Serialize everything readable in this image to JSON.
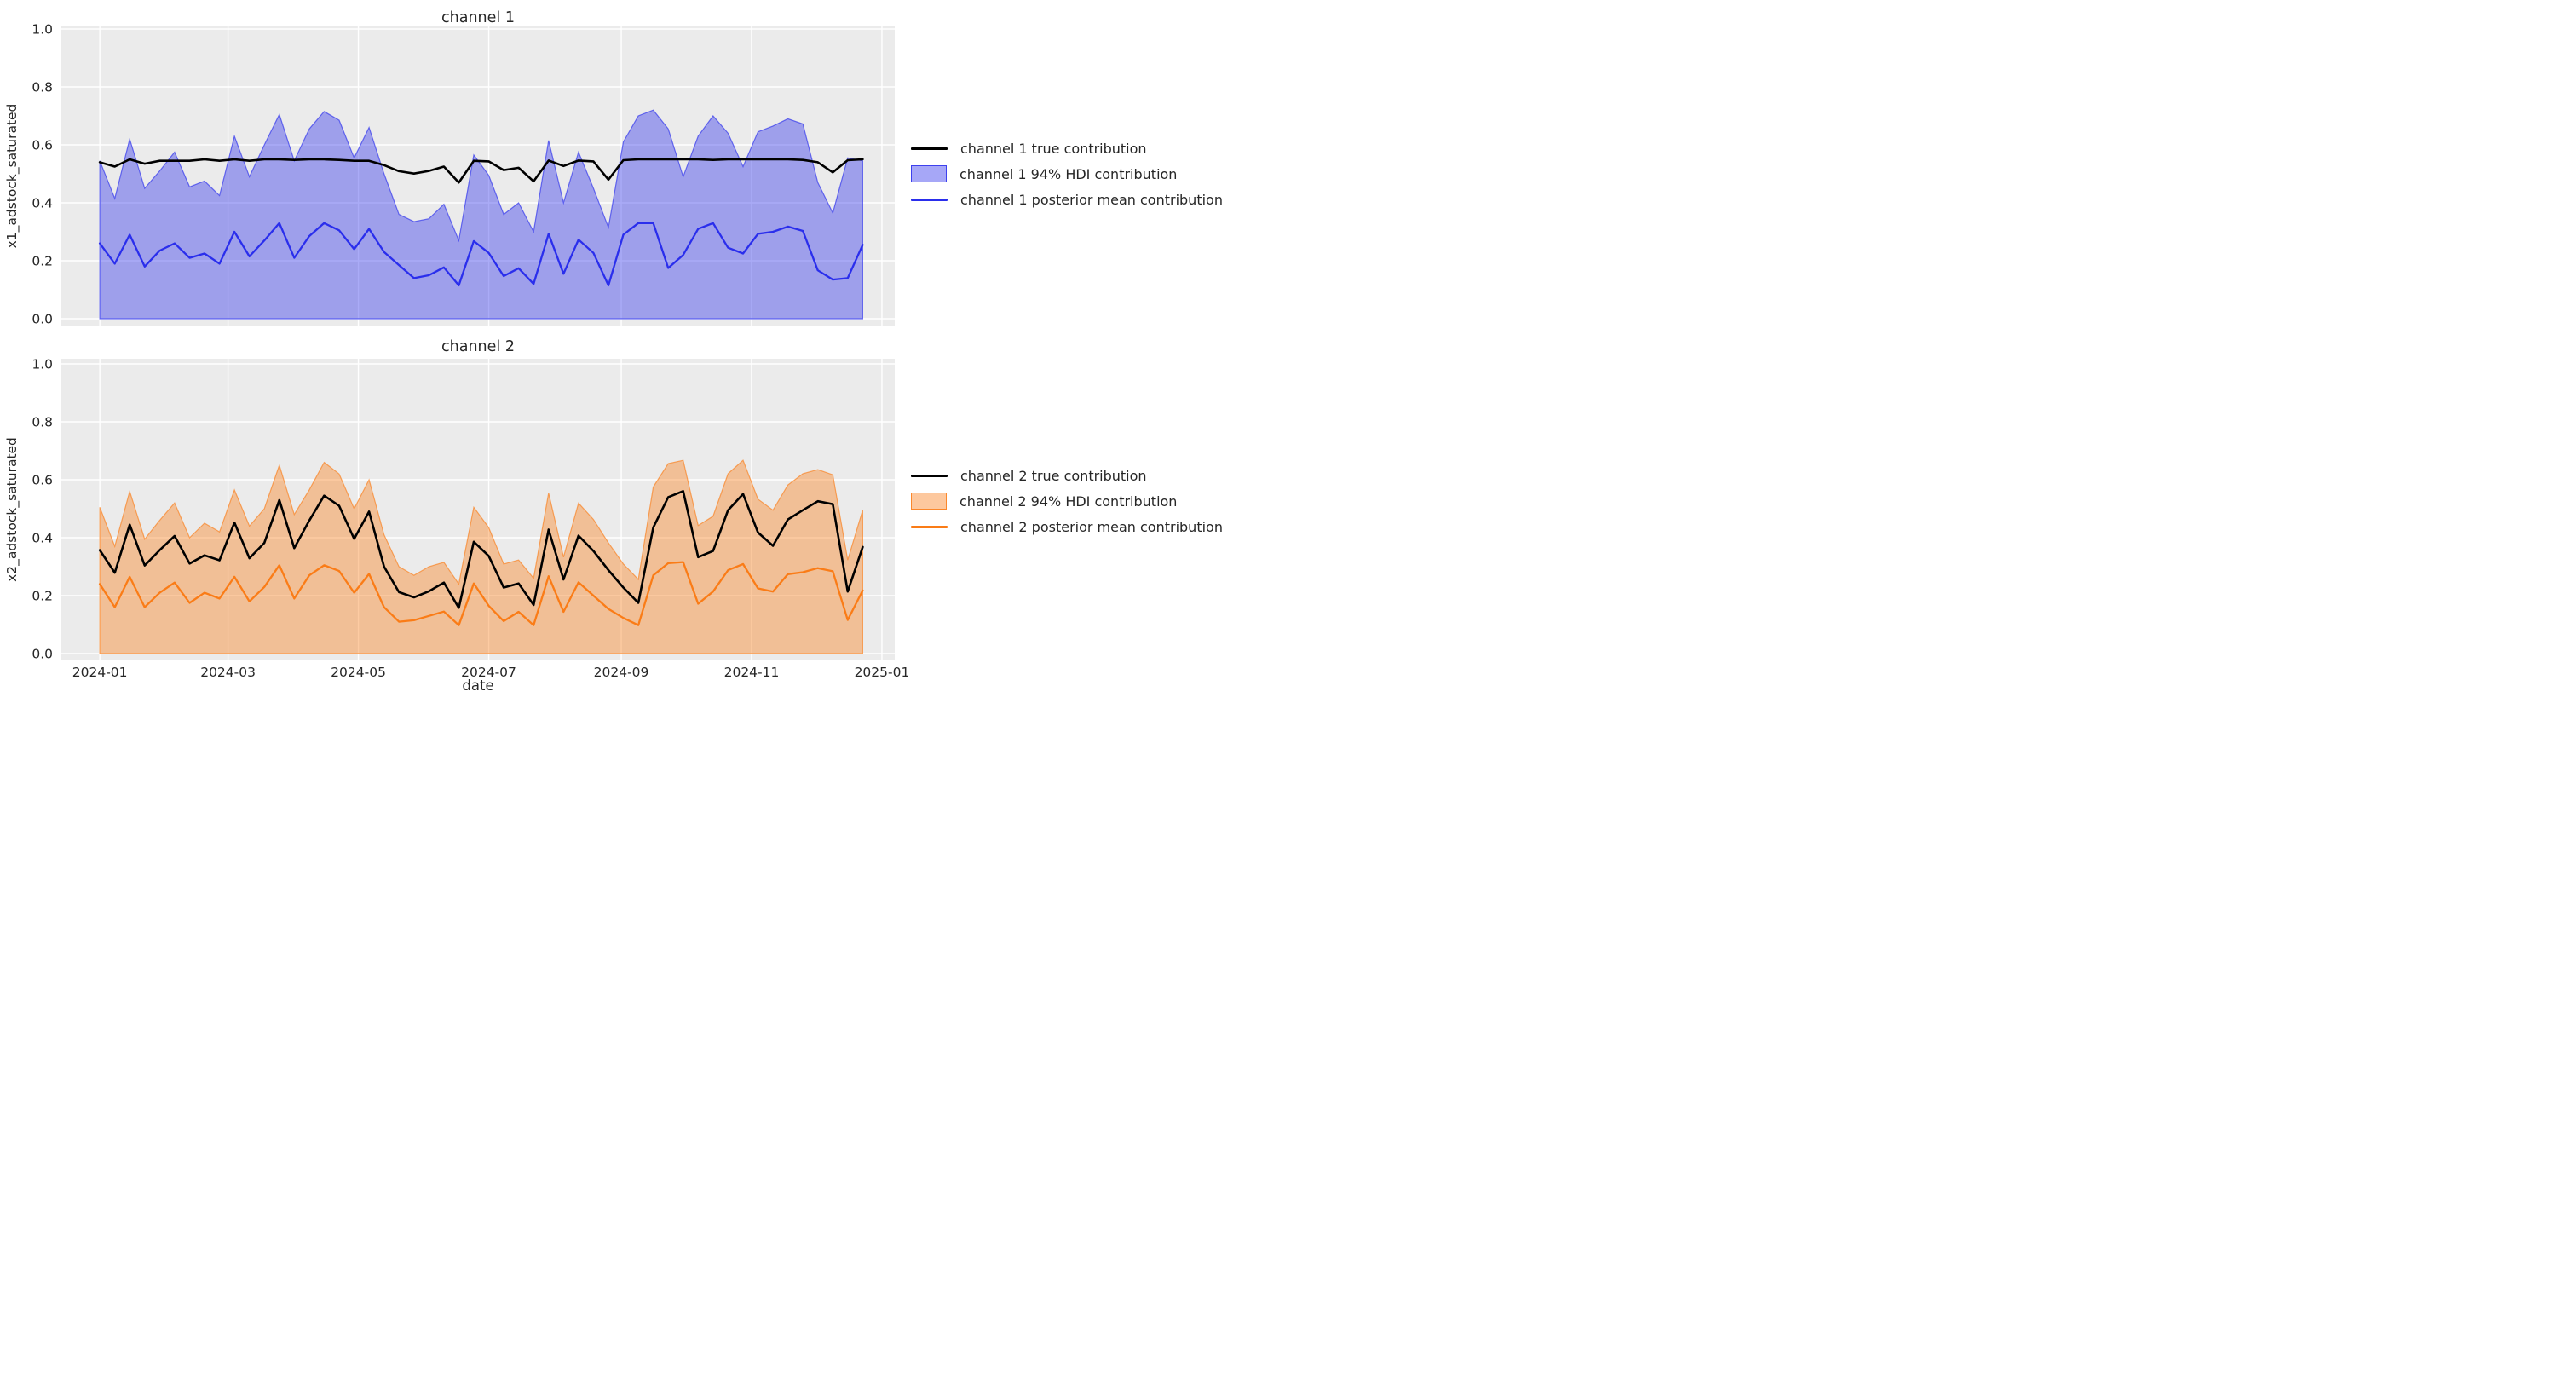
{
  "figure": {
    "background": "#ffffff",
    "axes_background": "#ebebeb",
    "grid_color": "#ffffff",
    "text_color": "#262626"
  },
  "chart_data": [
    {
      "id": "channel-1",
      "type": "line",
      "title": "channel 1",
      "ylabel": "x1_adstock_saturated",
      "xlabel": "",
      "ylim": [
        0.0,
        1.0
      ],
      "grid": "on",
      "legend_position": "right",
      "ytick_labels": [
        "0.0",
        "0.2",
        "0.4",
        "0.6",
        "0.8",
        "1.0"
      ],
      "ytick_values": [
        0.0,
        0.2,
        0.4,
        0.6,
        0.8,
        1.0
      ],
      "xtick_labels": [],
      "xtick_days": [
        0,
        60,
        121,
        182,
        244,
        305,
        366
      ],
      "x_start_day": -18,
      "x_end_day": 372,
      "point_interval_days": 7,
      "colors": {
        "true": "#000000",
        "hdi": "#2a2eec",
        "mean": "#2a2eec"
      },
      "legend": [
        {
          "label": "channel 1 true contribution",
          "swatch": "line",
          "color": "#000000"
        },
        {
          "label": "channel 1 94% HDI contribution",
          "swatch": "patch",
          "color": "#2a2eec"
        },
        {
          "label": "channel 1 posterior mean contribution",
          "swatch": "line",
          "color": "#2a2eec"
        }
      ],
      "series": [
        {
          "name": "channel 1 true contribution",
          "values": [
            0.54,
            0.525,
            0.55,
            0.535,
            0.545,
            0.545,
            0.545,
            0.55,
            0.545,
            0.55,
            0.545,
            0.55,
            0.55,
            0.548,
            0.55,
            0.55,
            0.548,
            0.545,
            0.545,
            0.53,
            0.509,
            0.501,
            0.51,
            0.525,
            0.47,
            0.545,
            0.543,
            0.513,
            0.521,
            0.474,
            0.546,
            0.527,
            0.546,
            0.543,
            0.48,
            0.547,
            0.55,
            0.55,
            0.55,
            0.55,
            0.55,
            0.548,
            0.55,
            0.55,
            0.55,
            0.55,
            0.55,
            0.548,
            0.54,
            0.505,
            0.547,
            0.55
          ]
        },
        {
          "name": "channel 1 94% HDI upper",
          "values": [
            0.545,
            0.415,
            0.62,
            0.45,
            0.51,
            0.575,
            0.455,
            0.475,
            0.425,
            0.63,
            0.49,
            0.6,
            0.705,
            0.545,
            0.655,
            0.715,
            0.685,
            0.555,
            0.66,
            0.5,
            0.36,
            0.335,
            0.345,
            0.395,
            0.27,
            0.565,
            0.495,
            0.36,
            0.4,
            0.3,
            0.615,
            0.4,
            0.575,
            0.45,
            0.315,
            0.61,
            0.7,
            0.72,
            0.655,
            0.49,
            0.63,
            0.7,
            0.64,
            0.525,
            0.645,
            0.665,
            0.69,
            0.672,
            0.47,
            0.365,
            0.555,
            0.545
          ]
        },
        {
          "name": "channel 1 94% HDI lower",
          "constant": 0.0
        },
        {
          "name": "channel 1 posterior mean contribution",
          "values": [
            0.26,
            0.19,
            0.29,
            0.18,
            0.235,
            0.26,
            0.21,
            0.225,
            0.19,
            0.3,
            0.215,
            0.27,
            0.33,
            0.21,
            0.285,
            0.33,
            0.305,
            0.24,
            0.31,
            0.23,
            0.185,
            0.14,
            0.15,
            0.177,
            0.115,
            0.268,
            0.227,
            0.147,
            0.174,
            0.12,
            0.293,
            0.155,
            0.273,
            0.227,
            0.115,
            0.29,
            0.33,
            0.33,
            0.175,
            0.22,
            0.31,
            0.33,
            0.245,
            0.225,
            0.293,
            0.3,
            0.318,
            0.303,
            0.167,
            0.135,
            0.14,
            0.255
          ]
        }
      ]
    },
    {
      "id": "channel-2",
      "type": "line",
      "title": "channel 2",
      "ylabel": "x2_adstock_saturated",
      "xlabel": "date",
      "ylim": [
        0.0,
        1.0
      ],
      "grid": "on",
      "legend_position": "right",
      "ytick_labels": [
        "0.0",
        "0.2",
        "0.4",
        "0.6",
        "0.8",
        "1.0"
      ],
      "ytick_values": [
        0.0,
        0.2,
        0.4,
        0.6,
        0.8,
        1.0
      ],
      "xtick_labels": [
        "2024-01",
        "2024-03",
        "2024-05",
        "2024-07",
        "2024-09",
        "2024-11",
        "2025-01"
      ],
      "xtick_days": [
        0,
        60,
        121,
        182,
        244,
        305,
        366
      ],
      "x_start_day": -18,
      "x_end_day": 372,
      "point_interval_days": 7,
      "colors": {
        "true": "#000000",
        "hdi": "#fa7c17",
        "mean": "#fa7c17"
      },
      "legend": [
        {
          "label": "channel 2 true contribution",
          "swatch": "line",
          "color": "#000000"
        },
        {
          "label": "channel 2 94% HDI contribution",
          "swatch": "patch",
          "color": "#fa7c17"
        },
        {
          "label": "channel 2 posterior mean contribution",
          "swatch": "line",
          "color": "#fa7c17"
        }
      ],
      "series": [
        {
          "name": "channel 2 true contribution",
          "values": [
            0.357,
            0.279,
            0.445,
            0.304,
            0.357,
            0.406,
            0.311,
            0.339,
            0.322,
            0.452,
            0.329,
            0.382,
            0.53,
            0.364,
            0.459,
            0.545,
            0.51,
            0.396,
            0.49,
            0.3,
            0.212,
            0.194,
            0.215,
            0.245,
            0.158,
            0.386,
            0.337,
            0.228,
            0.242,
            0.168,
            0.428,
            0.256,
            0.407,
            0.354,
            0.288,
            0.228,
            0.175,
            0.435,
            0.54,
            0.561,
            0.333,
            0.354,
            0.495,
            0.551,
            0.418,
            0.372,
            0.463,
            0.495,
            0.526,
            0.516,
            0.214,
            0.368
          ]
        },
        {
          "name": "channel 2 94% HDI upper",
          "values": [
            0.505,
            0.37,
            0.56,
            0.395,
            0.46,
            0.52,
            0.4,
            0.45,
            0.42,
            0.565,
            0.44,
            0.5,
            0.65,
            0.48,
            0.565,
            0.66,
            0.62,
            0.5,
            0.6,
            0.41,
            0.3,
            0.27,
            0.3,
            0.315,
            0.24,
            0.505,
            0.435,
            0.309,
            0.323,
            0.26,
            0.554,
            0.333,
            0.519,
            0.463,
            0.382,
            0.309,
            0.256,
            0.575,
            0.656,
            0.667,
            0.442,
            0.474,
            0.621,
            0.667,
            0.533,
            0.495,
            0.582,
            0.621,
            0.635,
            0.617,
            0.323,
            0.495
          ]
        },
        {
          "name": "channel 2 94% HDI lower",
          "constant": 0.0
        },
        {
          "name": "channel 2 posterior mean contribution",
          "values": [
            0.24,
            0.16,
            0.265,
            0.16,
            0.21,
            0.245,
            0.175,
            0.21,
            0.19,
            0.265,
            0.18,
            0.23,
            0.305,
            0.19,
            0.27,
            0.305,
            0.285,
            0.21,
            0.275,
            0.16,
            0.11,
            0.115,
            0.13,
            0.145,
            0.098,
            0.242,
            0.165,
            0.112,
            0.144,
            0.098,
            0.267,
            0.144,
            0.246,
            0.2,
            0.154,
            0.123,
            0.098,
            0.27,
            0.312,
            0.316,
            0.172,
            0.214,
            0.288,
            0.309,
            0.225,
            0.214,
            0.274,
            0.281,
            0.295,
            0.284,
            0.116,
            0.218
          ]
        }
      ]
    }
  ]
}
